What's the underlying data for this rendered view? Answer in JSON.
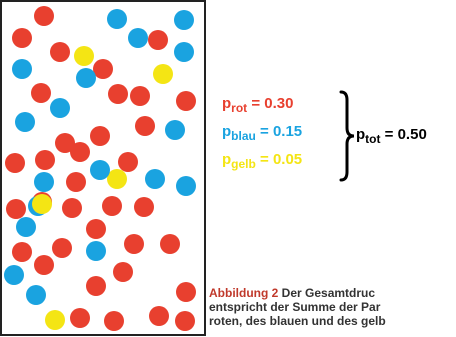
{
  "colors": {
    "red": "#e8402f",
    "blue": "#1aa3e0",
    "yellow": "#f4e514",
    "frame": "#222222"
  },
  "particles": [
    {
      "color": "red"
    },
    {
      "color": "blue"
    },
    {
      "color": "blue"
    },
    {
      "color": "yellow"
    },
    {
      "color": "red"
    },
    {
      "color": "blue"
    },
    {
      "color": "red"
    },
    {
      "color": "red"
    },
    {
      "color": "blue"
    },
    {
      "color": "blue"
    },
    {
      "color": "red"
    },
    {
      "color": "yellow"
    },
    {
      "color": "red"
    },
    {
      "color": "blue"
    },
    {
      "color": "red"
    },
    {
      "color": "red"
    },
    {
      "color": "red"
    },
    {
      "color": "blue"
    },
    {
      "color": "blue"
    },
    {
      "color": "red"
    },
    {
      "color": "red"
    },
    {
      "color": "red"
    },
    {
      "color": "blue"
    },
    {
      "color": "red"
    },
    {
      "color": "red"
    },
    {
      "color": "red"
    },
    {
      "color": "red"
    },
    {
      "color": "blue"
    },
    {
      "color": "blue"
    },
    {
      "color": "red"
    },
    {
      "color": "red"
    },
    {
      "color": "red"
    },
    {
      "color": "red"
    },
    {
      "color": "blue"
    },
    {
      "color": "red"
    },
    {
      "color": "yellow"
    },
    {
      "color": "red"
    },
    {
      "color": "blue"
    },
    {
      "color": "yellow"
    },
    {
      "color": "red"
    },
    {
      "color": "red"
    },
    {
      "color": "blue"
    },
    {
      "color": "red"
    },
    {
      "color": "red"
    },
    {
      "color": "blue"
    },
    {
      "color": "red"
    },
    {
      "color": "blue"
    },
    {
      "color": "red"
    },
    {
      "color": "red"
    },
    {
      "color": "red"
    },
    {
      "color": "red"
    },
    {
      "color": "blue"
    },
    {
      "color": "red"
    },
    {
      "color": "yellow"
    },
    {
      "color": "red"
    },
    {
      "color": "red"
    },
    {
      "color": "red"
    },
    {
      "color": "blue"
    }
  ],
  "equations": {
    "rot": {
      "p": "p",
      "sub": "rot",
      "rest": " = 0.30",
      "color": "#e8402f"
    },
    "blau": {
      "p": "p",
      "sub": "blau",
      "rest": " = 0.15",
      "color": "#1aa3e0"
    },
    "gelb": {
      "p": "p",
      "sub": "gelb",
      "rest": " = 0.05",
      "color": "#f4e514"
    }
  },
  "total": {
    "p": "p",
    "sub": "tot",
    "rest": " = 0.50"
  },
  "caption": {
    "lead": "Abbildung 2",
    "line1": " Der Gesamtdruc",
    "line2": "entspricht der Summe der Par",
    "line3": "roten, des blauen und des gelb"
  }
}
